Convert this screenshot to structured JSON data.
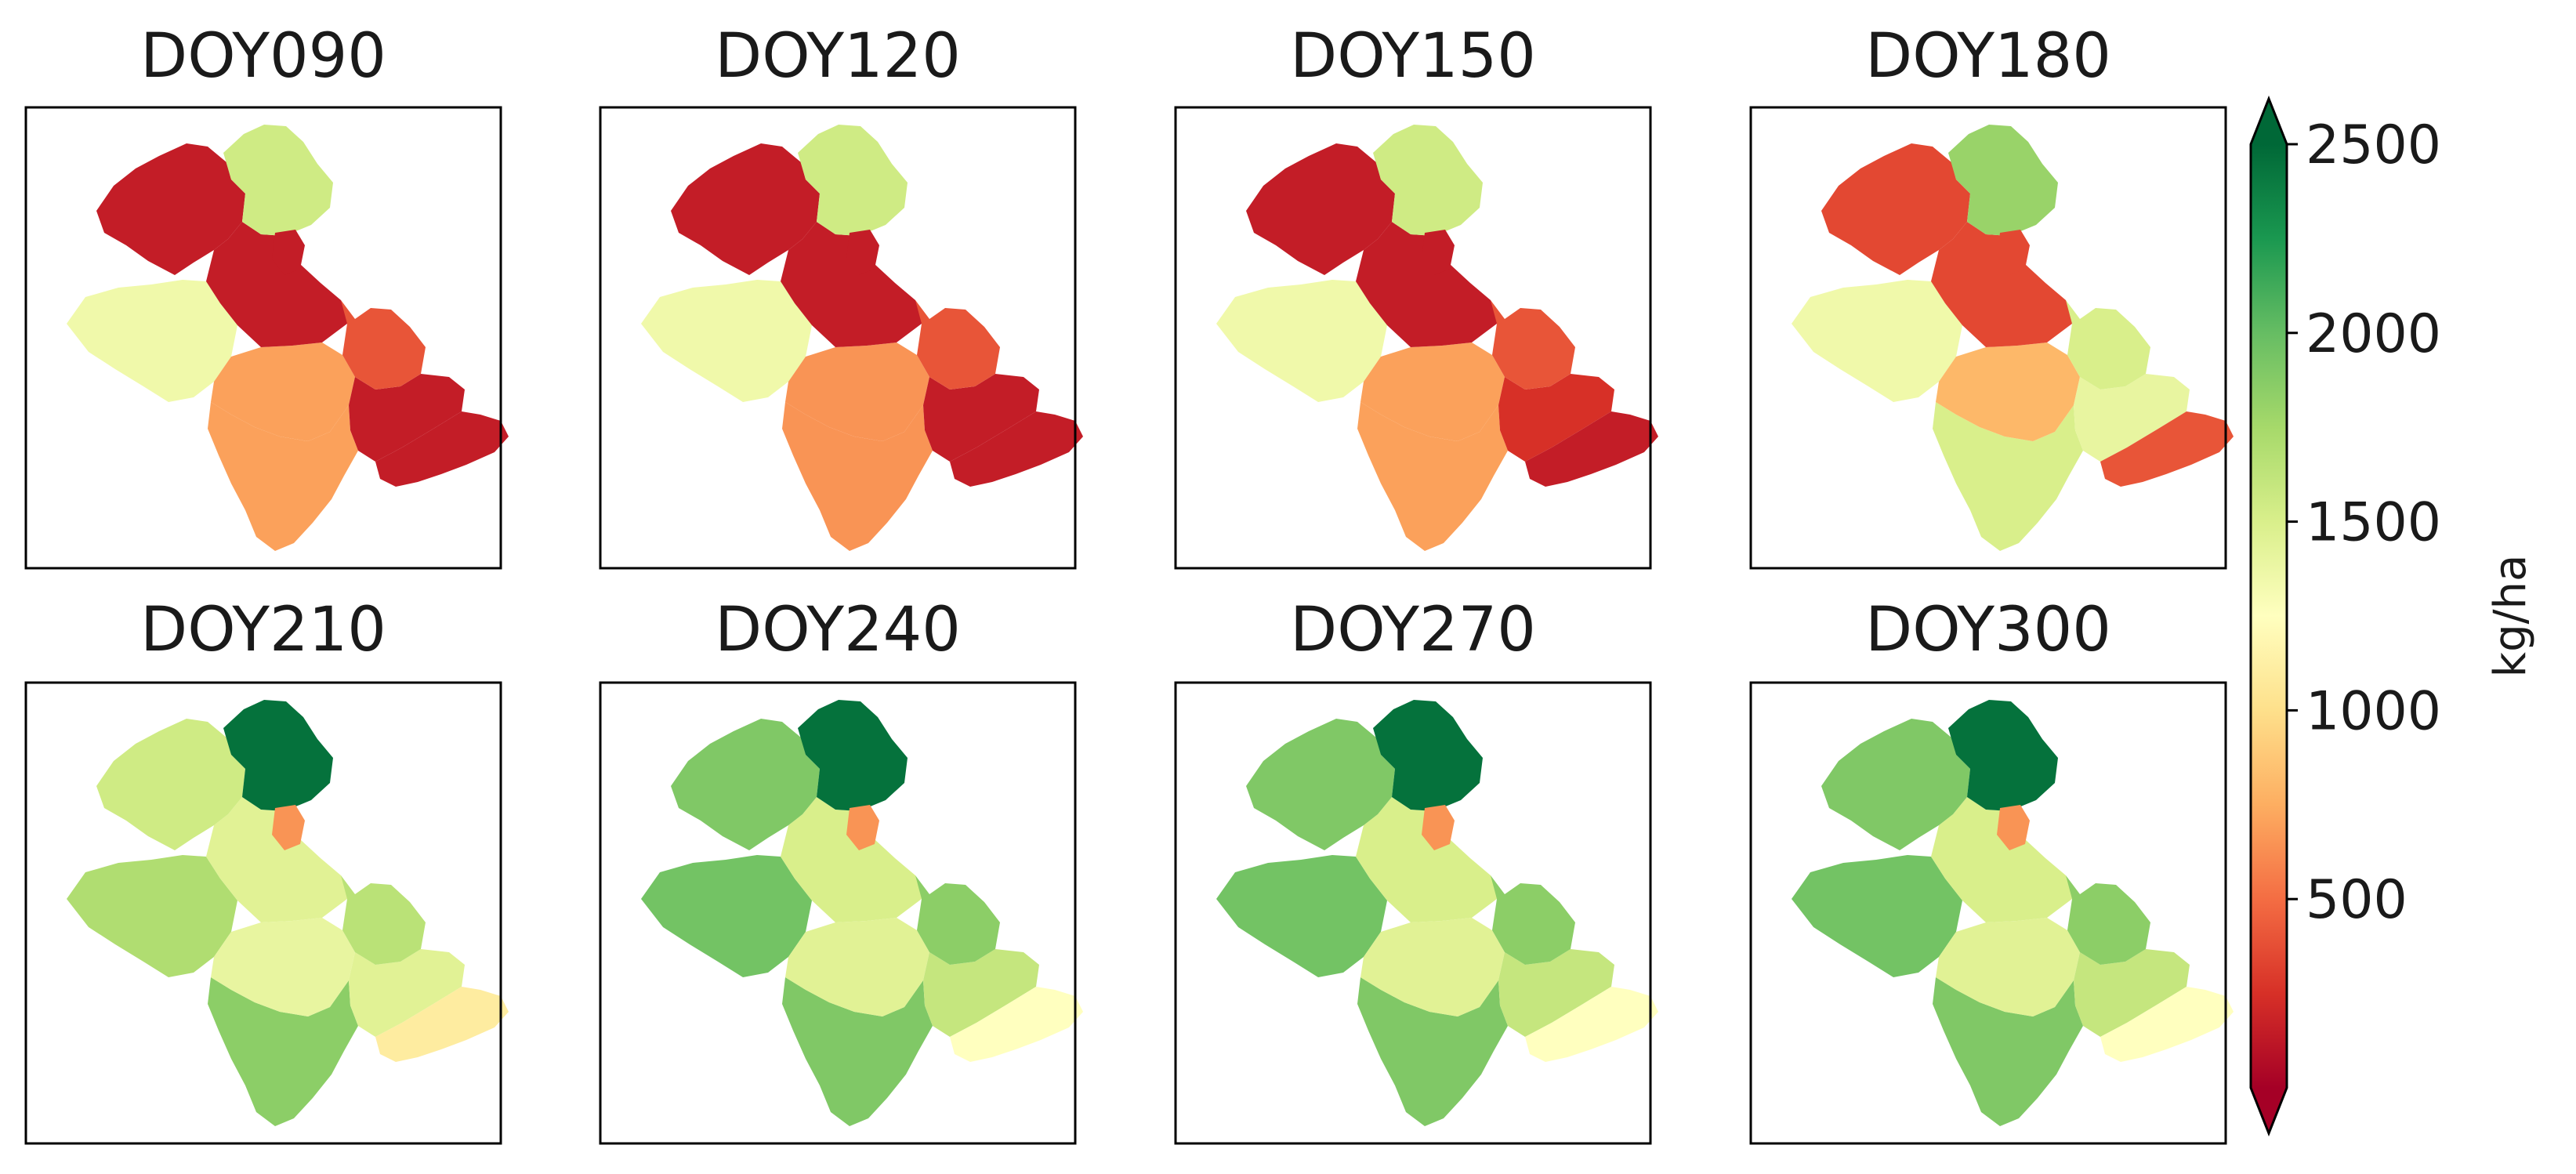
{
  "chart_data": {
    "type": "heatmap",
    "title": "",
    "panels": [
      {
        "title": "DOY090",
        "zones": {
          "nw": 150,
          "north": 1550,
          "center": 150,
          "west": 1350,
          "east_mid": 400,
          "south_center": 700,
          "south_east": 150,
          "south": 700,
          "east_tail": 150,
          "neck": 150
        }
      },
      {
        "title": "DOY120",
        "zones": {
          "nw": 150,
          "north": 1550,
          "center": 150,
          "west": 1350,
          "east_mid": 400,
          "south_center": 650,
          "south_east": 150,
          "south": 650,
          "east_tail": 150,
          "neck": 150
        }
      },
      {
        "title": "DOY150",
        "zones": {
          "nw": 150,
          "north": 1550,
          "center": 150,
          "west": 1350,
          "east_mid": 400,
          "south_center": 700,
          "south_east": 250,
          "south": 700,
          "east_tail": 150,
          "neck": 150
        }
      },
      {
        "title": "DOY180",
        "zones": {
          "nw": 350,
          "north": 1800,
          "center": 350,
          "west": 1350,
          "east_mid": 1500,
          "south_center": 800,
          "south_east": 1400,
          "south": 1500,
          "east_tail": 400,
          "neck": 350
        }
      },
      {
        "title": "DOY210",
        "zones": {
          "nw": 1550,
          "north": 2450,
          "center": 1450,
          "west": 1700,
          "east_mid": 1650,
          "south_center": 1400,
          "south_east": 1450,
          "south": 1850,
          "east_tail": 1100,
          "neck": 650
        }
      },
      {
        "title": "DOY240",
        "zones": {
          "nw": 1900,
          "north": 2450,
          "center": 1500,
          "west": 1950,
          "east_mid": 1850,
          "south_center": 1450,
          "south_east": 1600,
          "south": 1900,
          "east_tail": 1250,
          "neck": 650
        }
      },
      {
        "title": "DOY270",
        "zones": {
          "nw": 1900,
          "north": 2450,
          "center": 1500,
          "west": 1950,
          "east_mid": 1850,
          "south_center": 1450,
          "south_east": 1600,
          "south": 1900,
          "east_tail": 1250,
          "neck": 650
        }
      },
      {
        "title": "DOY300",
        "zones": {
          "nw": 1900,
          "north": 2450,
          "center": 1500,
          "west": 1950,
          "east_mid": 1850,
          "south_center": 1450,
          "south_east": 1600,
          "south": 1900,
          "east_tail": 1250,
          "neck": 650
        }
      }
    ],
    "colorbar": {
      "label": "kg/ha",
      "range": [
        0,
        2500
      ],
      "extend": "both",
      "cmap": "RdYlGn",
      "ticks": [
        {
          "value": 500,
          "label": "500"
        },
        {
          "value": 1000,
          "label": "1000"
        },
        {
          "value": 1500,
          "label": "1500"
        },
        {
          "value": 2000,
          "label": "2000"
        },
        {
          "value": 2500,
          "label": "2500"
        }
      ],
      "colors": [
        "#a50026",
        "#d73027",
        "#f46d43",
        "#fdae61",
        "#fee08b",
        "#ffffbf",
        "#d9ef8b",
        "#a6d96a",
        "#66bd63",
        "#1a9850",
        "#006837"
      ]
    }
  }
}
